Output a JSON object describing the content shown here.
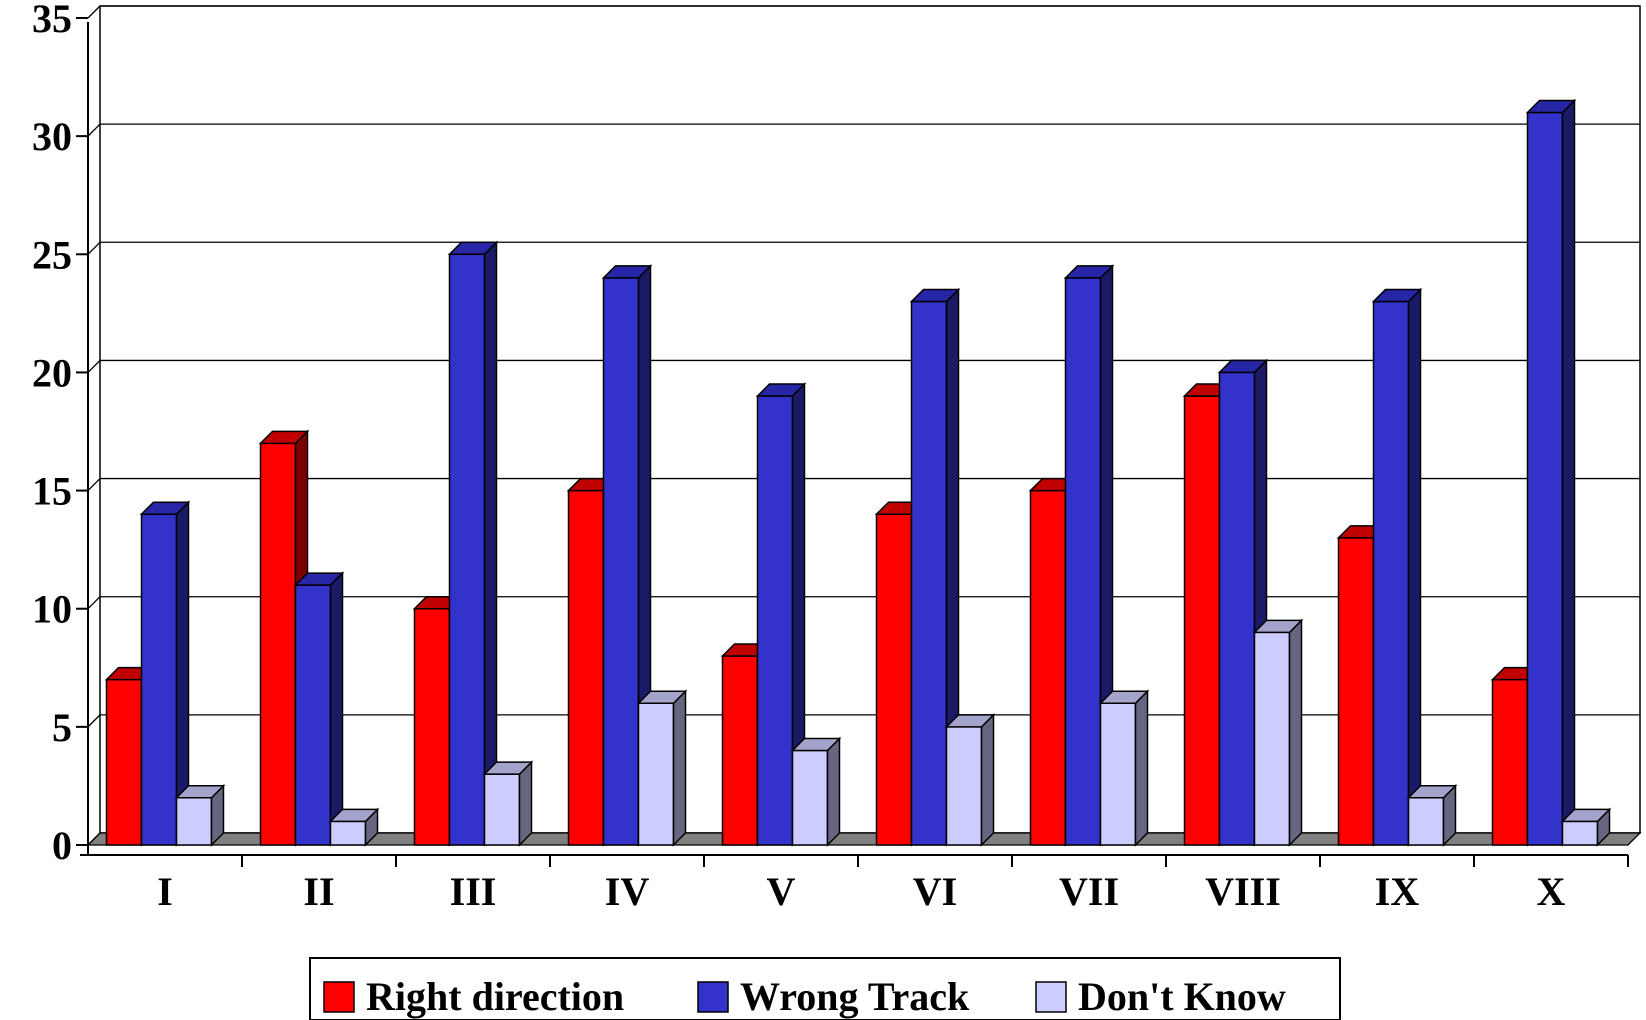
{
  "chart_data": {
    "type": "bar",
    "title": "",
    "xlabel": "",
    "ylabel": "",
    "categories": [
      "I",
      "II",
      "III",
      "IV",
      "V",
      "VI",
      "VII",
      "VIII",
      "IX",
      "X"
    ],
    "series": [
      {
        "name": "Right direction",
        "color": "#ff0000",
        "side_color": "#7a0000",
        "top_color": "#c00000",
        "values": [
          7,
          17,
          10,
          15,
          8,
          14,
          15,
          19,
          13,
          7
        ]
      },
      {
        "name": "Wrong Track",
        "color": "#3333cc",
        "side_color": "#1a1a66",
        "top_color": "#2626a6",
        "values": [
          14,
          11,
          25,
          24,
          19,
          23,
          24,
          20,
          23,
          31
        ]
      },
      {
        "name": "Don't Know",
        "color": "#ccccff",
        "side_color": "#666680",
        "top_color": "#a3a3cc",
        "values": [
          2,
          1,
          3,
          6,
          4,
          5,
          6,
          9,
          2,
          1
        ]
      }
    ],
    "ylim": [
      0,
      35
    ],
    "yticks": [
      0,
      5,
      10,
      15,
      20,
      25,
      30,
      35
    ],
    "grid": true,
    "legend_position": "bottom",
    "three_d": true
  }
}
